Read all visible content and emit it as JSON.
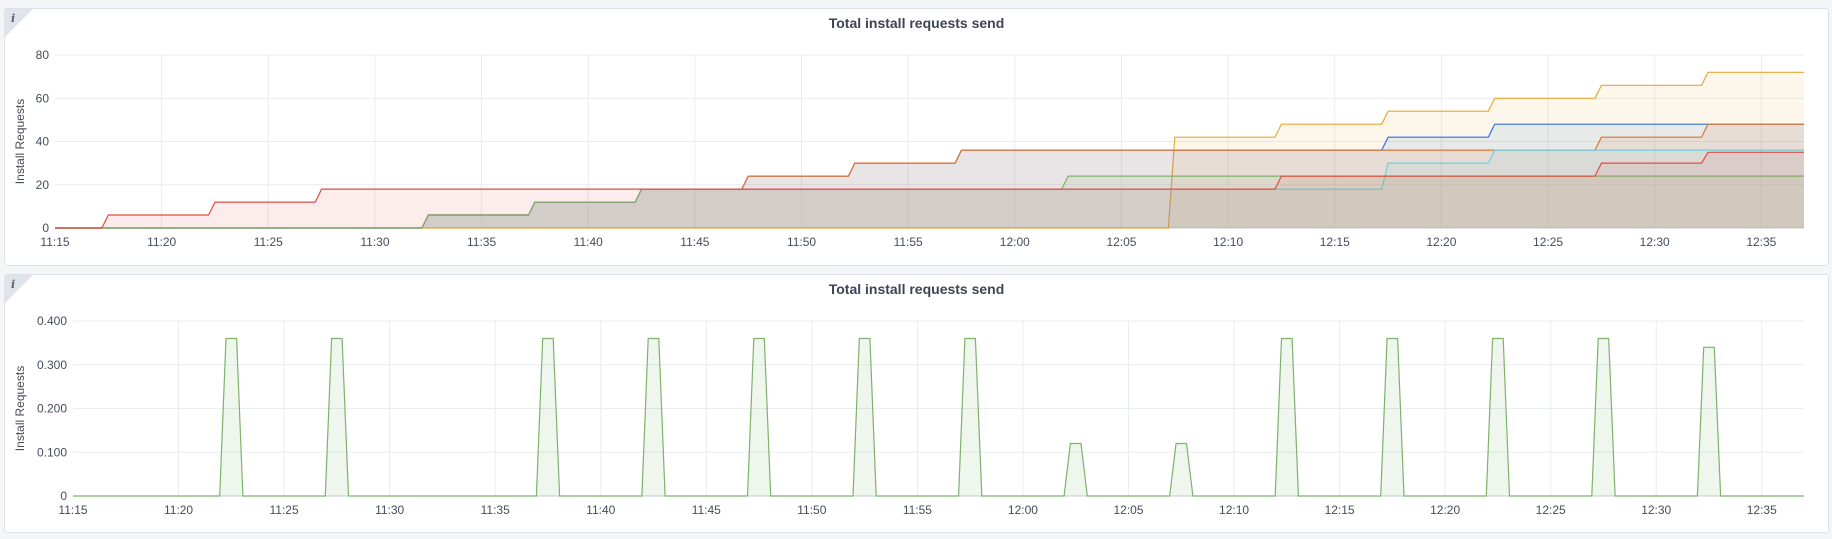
{
  "panels": [
    {
      "title": "Total install requests send",
      "info_icon": "info-icon"
    },
    {
      "title": "Total install requests send",
      "info_icon": "info-icon"
    }
  ],
  "chart_data": [
    {
      "type": "area",
      "title": "Total install requests send",
      "ylabel": "Install Requests",
      "xlabel": "",
      "x_unit": "time (HH:MM)",
      "xlim": [
        "11:15",
        "12:37"
      ],
      "ylim": [
        0,
        80
      ],
      "x_ticks": [
        "11:15",
        "11:20",
        "11:25",
        "11:30",
        "11:35",
        "11:40",
        "11:45",
        "11:50",
        "11:55",
        "12:00",
        "12:05",
        "12:10",
        "12:15",
        "12:20",
        "12:25",
        "12:30",
        "12:35"
      ],
      "y_ticks": [
        "0",
        "20",
        "40",
        "60",
        "80"
      ],
      "grid": true,
      "legend": "none",
      "series": [
        {
          "color": "#e8a838",
          "steps": [
            [
              "11:15",
              0
            ],
            [
              "12:07:30",
              42
            ],
            [
              "12:12:30",
              48
            ],
            [
              "12:17:30",
              54
            ],
            [
              "12:22:30",
              60
            ],
            [
              "12:27:30",
              66
            ],
            [
              "12:32:30",
              72
            ]
          ]
        },
        {
          "color": "#3274d9",
          "steps": [
            [
              "11:15",
              0
            ],
            [
              "11:32:30",
              6
            ],
            [
              "11:37:30",
              12
            ],
            [
              "11:42:30",
              18
            ],
            [
              "11:47:30",
              24
            ],
            [
              "11:52:30",
              30
            ],
            [
              "11:57:30",
              36
            ],
            [
              "12:17:30",
              42
            ],
            [
              "12:22:30",
              48
            ]
          ]
        },
        {
          "color": "#e0752d",
          "steps": [
            [
              "11:15",
              0
            ],
            [
              "11:32:30",
              6
            ],
            [
              "11:37:30",
              12
            ],
            [
              "11:42:30",
              18
            ],
            [
              "11:47:30",
              24
            ],
            [
              "11:52:30",
              30
            ],
            [
              "11:57:30",
              36
            ],
            [
              "12:27:30",
              42
            ],
            [
              "12:32:30",
              48
            ]
          ]
        },
        {
          "color": "#6ed0e0",
          "steps": [
            [
              "11:15",
              0
            ],
            [
              "11:32:30",
              6
            ],
            [
              "11:37:30",
              12
            ],
            [
              "11:42:30",
              18
            ],
            [
              "12:17:30",
              30
            ],
            [
              "12:22:30",
              36
            ]
          ]
        },
        {
          "color": "#7eb26d",
          "steps": [
            [
              "11:15",
              0
            ],
            [
              "11:32:30",
              6
            ],
            [
              "11:37:30",
              12
            ],
            [
              "11:42:30",
              18
            ],
            [
              "12:02:30",
              24
            ]
          ]
        },
        {
          "color": "#e24d42",
          "steps": [
            [
              "11:15",
              0
            ],
            [
              "11:17:30",
              6
            ],
            [
              "11:22:30",
              12
            ],
            [
              "11:27:30",
              18
            ],
            [
              "12:12:30",
              24
            ],
            [
              "12:27:30",
              30
            ],
            [
              "12:32:30",
              35
            ]
          ]
        }
      ]
    },
    {
      "type": "area",
      "title": "Total install requests send",
      "ylabel": "Install Requests",
      "xlabel": "",
      "x_unit": "time (HH:MM)",
      "xlim": [
        "11:15",
        "12:37"
      ],
      "ylim": [
        0,
        0.4
      ],
      "x_ticks": [
        "11:15",
        "11:20",
        "11:25",
        "11:30",
        "11:35",
        "11:40",
        "11:45",
        "11:50",
        "11:55",
        "12:00",
        "12:05",
        "12:10",
        "12:15",
        "12:20",
        "12:25",
        "12:30",
        "12:35"
      ],
      "y_ticks": [
        "0",
        "0.100",
        "0.200",
        "0.300",
        "0.400"
      ],
      "grid": true,
      "legend": "none",
      "series": [
        {
          "color": "#7eb26d",
          "pulses": [
            {
              "center": "11:22:30",
              "value": 0.36
            },
            {
              "center": "11:27:30",
              "value": 0.36
            },
            {
              "center": "11:37:30",
              "value": 0.36
            },
            {
              "center": "11:42:30",
              "value": 0.36
            },
            {
              "center": "11:47:30",
              "value": 0.36
            },
            {
              "center": "11:52:30",
              "value": 0.36
            },
            {
              "center": "11:57:30",
              "value": 0.36
            },
            {
              "center": "12:02:30",
              "value": 0.12
            },
            {
              "center": "12:07:30",
              "value": 0.12
            },
            {
              "center": "12:12:30",
              "value": 0.36
            },
            {
              "center": "12:17:30",
              "value": 0.36
            },
            {
              "center": "12:22:30",
              "value": 0.36
            },
            {
              "center": "12:27:30",
              "value": 0.36
            },
            {
              "center": "12:32:30",
              "value": 0.34
            }
          ]
        }
      ]
    }
  ]
}
